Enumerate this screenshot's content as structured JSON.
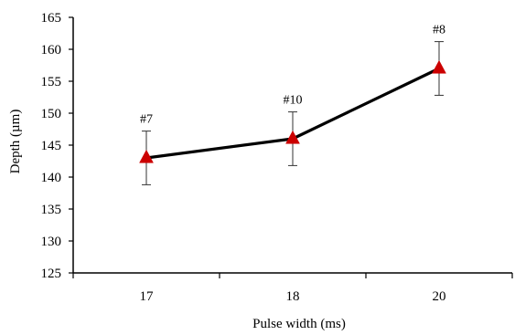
{
  "chart_data": {
    "type": "line",
    "title": "",
    "xlabel": "Pulse width (ms)",
    "ylabel": "Depth (µm)",
    "categories": [
      "17",
      "18",
      "20"
    ],
    "ylim": [
      125,
      165
    ],
    "yticks": [
      125,
      130,
      135,
      140,
      145,
      150,
      155,
      160,
      165
    ],
    "grid": false,
    "legend": "none",
    "series": [
      {
        "values": [
          143,
          146,
          157
        ],
        "error": [
          4.2,
          4.2,
          4.2
        ],
        "point_labels": [
          "#7",
          "#10",
          "#8"
        ],
        "line_color": "#000000",
        "marker": "triangle",
        "marker_color": "#cc0000"
      }
    ]
  }
}
